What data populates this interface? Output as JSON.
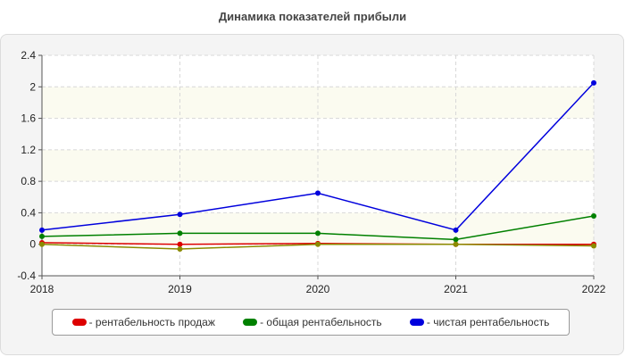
{
  "chart_data": {
    "type": "line",
    "title": "Динамика показателей прибыли",
    "xlabel": "",
    "ylabel": "",
    "x": [
      "2018",
      "2019",
      "2020",
      "2021",
      "2022"
    ],
    "ylim": [
      -0.4,
      2.4
    ],
    "yticks": [
      "-0.4",
      "0",
      "0.4",
      "0.8",
      "1.2",
      "1.6",
      "2",
      "2.4"
    ],
    "grid": true,
    "legend_position": "bottom",
    "series": [
      {
        "name": "- рентабельность продаж",
        "color": "#dd0000",
        "values": [
          0.02,
          0.0,
          0.01,
          0.0,
          0.0
        ]
      },
      {
        "name": "- общая рентабельность",
        "color": "#008000",
        "values": [
          0.1,
          0.14,
          0.14,
          0.06,
          0.36
        ]
      },
      {
        "name": "- чистая рентабельность",
        "color": "#0000dd",
        "values": [
          0.18,
          0.38,
          0.65,
          0.18,
          2.05
        ]
      },
      {
        "name": "",
        "color": "#8b8b00",
        "values": [
          0.0,
          -0.06,
          0.0,
          0.0,
          -0.02
        ]
      }
    ]
  }
}
